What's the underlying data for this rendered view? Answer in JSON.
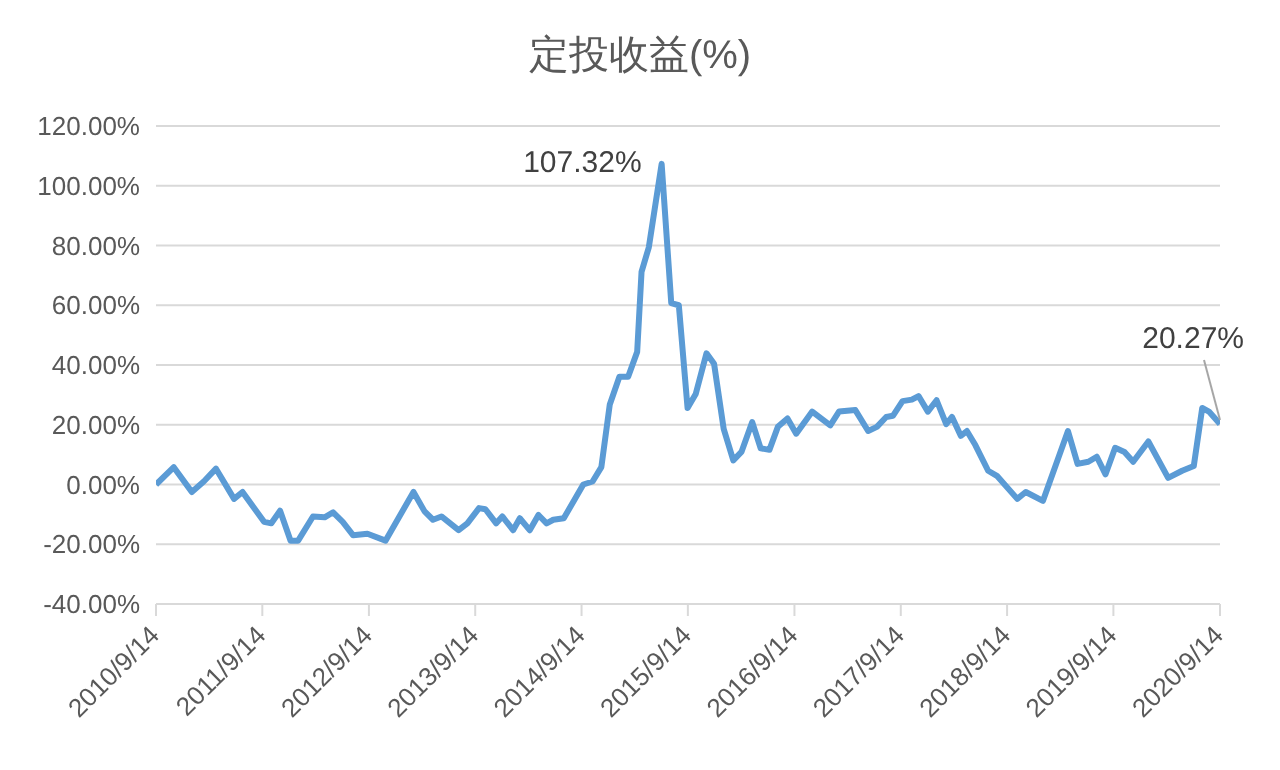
{
  "chart_data": {
    "type": "line",
    "title": "定投收益(%)",
    "x": [
      "2010-09-14",
      "2010-11-14",
      "2011-01-15",
      "2011-02-25",
      "2011-04-08",
      "2011-06-09",
      "2011-07-08",
      "2011-09-20",
      "2011-10-15",
      "2011-11-14",
      "2011-12-20",
      "2012-01-15",
      "2012-03-06",
      "2012-04-15",
      "2012-05-14",
      "2012-06-16",
      "2012-07-22",
      "2012-09-09",
      "2012-11-10",
      "2013-02-14",
      "2013-03-24",
      "2013-04-22",
      "2013-05-21",
      "2013-07-19",
      "2013-08-18",
      "2013-09-27",
      "2013-10-19",
      "2013-11-25",
      "2013-12-16",
      "2014-01-22",
      "2014-02-14",
      "2014-03-20",
      "2014-04-19",
      "2014-05-17",
      "2014-06-09",
      "2014-07-15",
      "2014-09-20",
      "2014-10-22",
      "2014-11-21",
      "2014-12-20",
      "2015-01-22",
      "2015-02-21",
      "2015-03-24",
      "2015-04-08",
      "2015-05-03",
      "2015-06-16",
      "2015-07-19",
      "2015-08-14",
      "2015-09-13",
      "2015-10-11",
      "2015-11-17",
      "2015-12-13",
      "2016-01-15",
      "2016-02-17",
      "2016-03-16",
      "2016-04-22",
      "2016-05-21",
      "2016-06-20",
      "2016-07-19",
      "2016-08-21",
      "2016-09-20",
      "2016-11-14",
      "2017-01-15",
      "2017-02-14",
      "2017-04-11",
      "2017-05-25",
      "2017-06-24",
      "2017-07-26",
      "2017-08-18",
      "2017-09-20",
      "2017-10-22",
      "2017-11-14",
      "2017-12-16",
      "2018-01-15",
      "2018-02-17",
      "2018-03-09",
      "2018-04-08",
      "2018-04-29",
      "2018-05-28",
      "2018-07-11",
      "2018-08-10",
      "2018-10-19",
      "2018-11-17",
      "2019-01-15",
      "2019-04-11",
      "2019-05-14",
      "2019-06-20",
      "2019-07-19",
      "2019-08-18",
      "2019-09-20",
      "2019-10-22",
      "2019-11-21",
      "2020-01-12",
      "2020-03-20",
      "2020-05-07",
      "2020-06-16",
      "2020-07-15",
      "2020-08-07",
      "2020-09-14"
    ],
    "series": [
      {
        "color": "#5b9bd5",
        "values": [
          0,
          5.8,
          -2.5,
          1,
          5.3,
          -4.8,
          -2.5,
          -12.5,
          -13,
          -8.8,
          -18.8,
          -18.8,
          -10.7,
          -11,
          -9.3,
          -12.5,
          -17,
          -16.5,
          -18.8,
          -2.5,
          -9,
          -11.8,
          -10.7,
          -15.3,
          -13,
          -7.9,
          -8.3,
          -13,
          -10.7,
          -15.3,
          -11.3,
          -15.3,
          -10.2,
          -13,
          -11.8,
          -11.3,
          0,
          1,
          5.8,
          26.8,
          36.1,
          36.1,
          44.4,
          71.2,
          79.4,
          107.32,
          60.7,
          60,
          25.6,
          30.3,
          43.9,
          40.4,
          18.6,
          8.1,
          10.9,
          20.9,
          12.1,
          11.6,
          19.3,
          22.1,
          17,
          24.4,
          19.8,
          24.4,
          24.9,
          17.9,
          19.3,
          22.6,
          23,
          27.9,
          28.4,
          29.6,
          24.4,
          28.2,
          20.2,
          22.6,
          16.3,
          17.9,
          13.2,
          4.6,
          2.9,
          -4.8,
          -2.5,
          -5.5,
          17.9,
          6.9,
          7.6,
          9.3,
          3.4,
          12.3,
          10.9,
          7.6,
          14.4,
          2.2,
          4.6,
          6.2,
          25.6,
          24.4,
          20.27
        ]
      }
    ],
    "xlim": [
      "2010-09-14",
      "2020-09-14"
    ],
    "xticks": [
      {
        "value": "2010-09-14",
        "label": "2010/9/14"
      },
      {
        "value": "2011-09-14",
        "label": "2011/9/14"
      },
      {
        "value": "2012-09-14",
        "label": "2012/9/14"
      },
      {
        "value": "2013-09-14",
        "label": "2013/9/14"
      },
      {
        "value": "2014-09-14",
        "label": "2014/9/14"
      },
      {
        "value": "2015-09-14",
        "label": "2015/9/14"
      },
      {
        "value": "2016-09-14",
        "label": "2016/9/14"
      },
      {
        "value": "2017-09-14",
        "label": "2017/9/14"
      },
      {
        "value": "2018-09-14",
        "label": "2018/9/14"
      },
      {
        "value": "2019-09-14",
        "label": "2019/9/14"
      },
      {
        "value": "2020-09-14",
        "label": "2020/9/14"
      }
    ],
    "ylim": [
      -40,
      120
    ],
    "yticks": [
      {
        "value": -40,
        "label": "-40.00%"
      },
      {
        "value": -20,
        "label": "-20.00%"
      },
      {
        "value": 0,
        "label": "0.00%"
      },
      {
        "value": 20,
        "label": "20.00%"
      },
      {
        "value": 40,
        "label": "40.00%"
      },
      {
        "value": 60,
        "label": "60.00%"
      },
      {
        "value": 80,
        "label": "80.00%"
      },
      {
        "value": 100,
        "label": "100.00%"
      },
      {
        "value": 120,
        "label": "120.00%"
      }
    ],
    "grid": "y",
    "legend": false,
    "marker": "none",
    "line_style": "solid",
    "annotations": [
      {
        "text": "107.32%",
        "x": "2015-06-16",
        "y": 107.32
      },
      {
        "text": "20.27%",
        "x": "2020-09-14",
        "y": 20.27
      }
    ]
  }
}
